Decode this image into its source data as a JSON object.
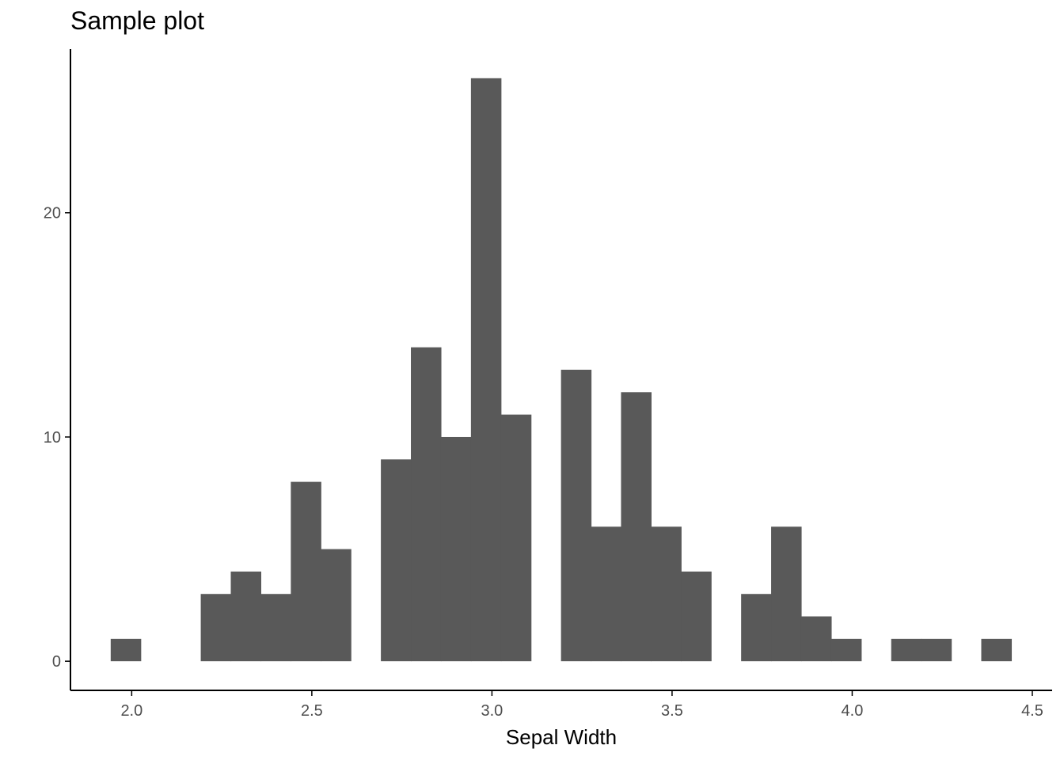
{
  "chart_data": {
    "type": "bar",
    "title": "Sample plot",
    "xlabel": "Sepal Width",
    "ylabel": "",
    "bin_width": 0.0833,
    "bins": [
      {
        "x0": 1.9417,
        "x1": 2.025,
        "count": 1
      },
      {
        "x0": 2.1917,
        "x1": 2.275,
        "count": 3
      },
      {
        "x0": 2.275,
        "x1": 2.3583,
        "count": 4
      },
      {
        "x0": 2.3583,
        "x1": 2.4417,
        "count": 3
      },
      {
        "x0": 2.4417,
        "x1": 2.525,
        "count": 8
      },
      {
        "x0": 2.525,
        "x1": 2.6083,
        "count": 5
      },
      {
        "x0": 2.6917,
        "x1": 2.775,
        "count": 9
      },
      {
        "x0": 2.775,
        "x1": 2.8583,
        "count": 14
      },
      {
        "x0": 2.8583,
        "x1": 2.9417,
        "count": 10
      },
      {
        "x0": 2.9417,
        "x1": 3.025,
        "count": 26
      },
      {
        "x0": 3.025,
        "x1": 3.1083,
        "count": 11
      },
      {
        "x0": 3.1917,
        "x1": 3.275,
        "count": 13
      },
      {
        "x0": 3.275,
        "x1": 3.3583,
        "count": 6
      },
      {
        "x0": 3.3583,
        "x1": 3.4417,
        "count": 12
      },
      {
        "x0": 3.4417,
        "x1": 3.525,
        "count": 6
      },
      {
        "x0": 3.525,
        "x1": 3.6083,
        "count": 4
      },
      {
        "x0": 3.6917,
        "x1": 3.775,
        "count": 3
      },
      {
        "x0": 3.775,
        "x1": 3.8583,
        "count": 6
      },
      {
        "x0": 3.8583,
        "x1": 3.9417,
        "count": 2
      },
      {
        "x0": 3.9417,
        "x1": 4.025,
        "count": 1
      },
      {
        "x0": 4.1083,
        "x1": 4.1917,
        "count": 1
      },
      {
        "x0": 4.1917,
        "x1": 4.275,
        "count": 1
      },
      {
        "x0": 4.3583,
        "x1": 4.4417,
        "count": 1
      }
    ],
    "xlim": [
      1.83,
      4.555
    ],
    "ylim": [
      -1.3,
      27.3
    ],
    "x_ticks": [
      2.0,
      2.5,
      3.0,
      3.5,
      4.0,
      4.5
    ],
    "x_tick_labels": [
      "2.0",
      "2.5",
      "3.0",
      "3.5",
      "4.0",
      "4.5"
    ],
    "y_ticks": [
      0,
      10,
      20
    ],
    "y_tick_labels": [
      "0",
      "10",
      "20"
    ],
    "grid": false,
    "legend": "none",
    "bar_color": "#595959",
    "axis_color": "#000000",
    "tick_label_color": "#4d4d4d"
  }
}
